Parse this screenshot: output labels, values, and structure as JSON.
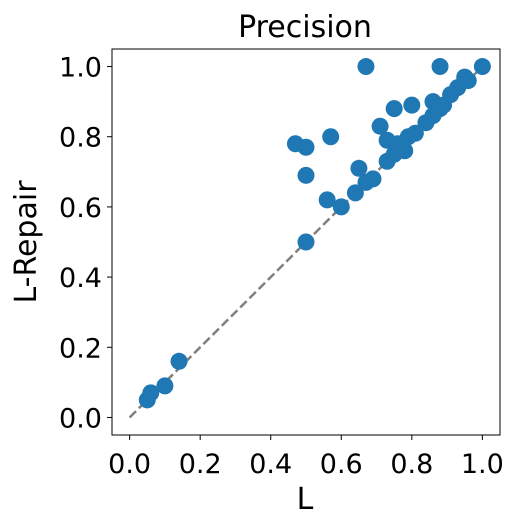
{
  "chart_data": {
    "type": "scatter",
    "title": "Precision",
    "xlabel": "L",
    "ylabel": "L-Repair",
    "xlim": [
      -0.05,
      1.05
    ],
    "ylim": [
      -0.05,
      1.05
    ],
    "xticks": [
      0.0,
      0.2,
      0.4,
      0.6,
      0.8,
      1.0
    ],
    "yticks": [
      0.0,
      0.2,
      0.4,
      0.6,
      0.8,
      1.0
    ],
    "xtick_labels": [
      "0.0",
      "0.2",
      "0.4",
      "0.6",
      "0.8",
      "1.0"
    ],
    "ytick_labels": [
      "0.0",
      "0.2",
      "0.4",
      "0.6",
      "0.8",
      "1.0"
    ],
    "grid": false,
    "reference_line": {
      "x": [
        0.0,
        1.0
      ],
      "y": [
        0.0,
        1.0
      ],
      "style": "dashed",
      "color": "#808080"
    },
    "marker_color": "#1f77b4",
    "points": [
      {
        "x": 0.05,
        "y": 0.05
      },
      {
        "x": 0.06,
        "y": 0.07
      },
      {
        "x": 0.1,
        "y": 0.09
      },
      {
        "x": 0.14,
        "y": 0.16
      },
      {
        "x": 0.47,
        "y": 0.78
      },
      {
        "x": 0.5,
        "y": 0.77
      },
      {
        "x": 0.5,
        "y": 0.69
      },
      {
        "x": 0.5,
        "y": 0.5
      },
      {
        "x": 0.56,
        "y": 0.62
      },
      {
        "x": 0.57,
        "y": 0.8
      },
      {
        "x": 0.6,
        "y": 0.6
      },
      {
        "x": 0.64,
        "y": 0.64
      },
      {
        "x": 0.65,
        "y": 0.71
      },
      {
        "x": 0.67,
        "y": 0.67
      },
      {
        "x": 0.67,
        "y": 1.0
      },
      {
        "x": 0.69,
        "y": 0.68
      },
      {
        "x": 0.71,
        "y": 0.83
      },
      {
        "x": 0.73,
        "y": 0.73
      },
      {
        "x": 0.73,
        "y": 0.79
      },
      {
        "x": 0.75,
        "y": 0.88
      },
      {
        "x": 0.75,
        "y": 0.75
      },
      {
        "x": 0.76,
        "y": 0.78
      },
      {
        "x": 0.78,
        "y": 0.76
      },
      {
        "x": 0.79,
        "y": 0.8
      },
      {
        "x": 0.8,
        "y": 0.89
      },
      {
        "x": 0.81,
        "y": 0.81
      },
      {
        "x": 0.84,
        "y": 0.84
      },
      {
        "x": 0.86,
        "y": 0.9
      },
      {
        "x": 0.86,
        "y": 0.86
      },
      {
        "x": 0.88,
        "y": 1.0
      },
      {
        "x": 0.88,
        "y": 0.88
      },
      {
        "x": 0.89,
        "y": 0.89
      },
      {
        "x": 0.91,
        "y": 0.92
      },
      {
        "x": 0.93,
        "y": 0.94
      },
      {
        "x": 0.95,
        "y": 0.97
      },
      {
        "x": 0.96,
        "y": 0.96
      },
      {
        "x": 1.0,
        "y": 1.0
      }
    ]
  }
}
